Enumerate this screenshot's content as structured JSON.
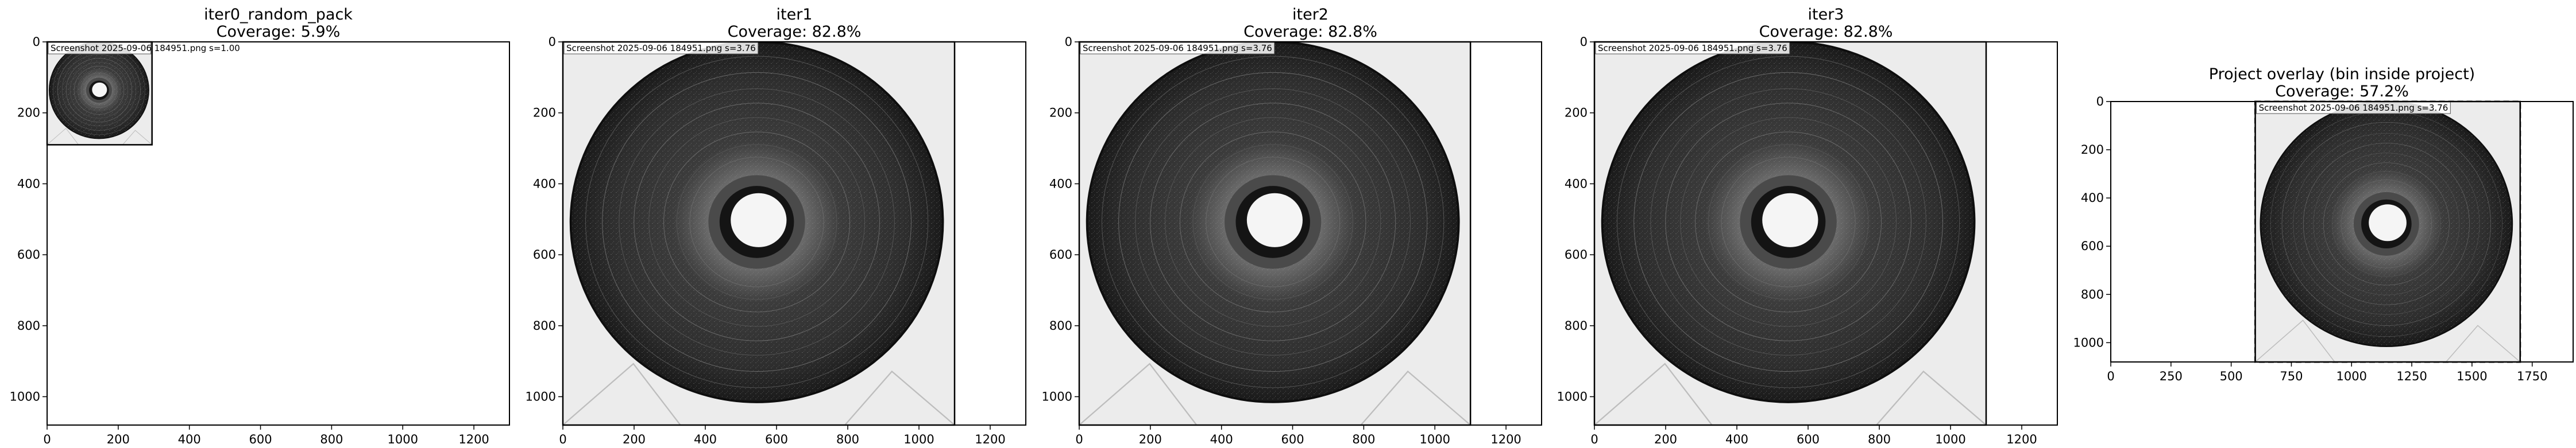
{
  "chart_data": [
    {
      "type": "image",
      "title": "iter0_random_pack",
      "subtitle": "Coverage: 5.9%",
      "xlim": [
        0,
        1300
      ],
      "ylim": [
        1080,
        0
      ],
      "xticks": [
        0,
        200,
        400,
        600,
        800,
        1000,
        1200
      ],
      "yticks": [
        0,
        200,
        400,
        600,
        800,
        1000
      ],
      "placements": [
        {
          "label": "Screenshot 2025-09-06 184951.png  s=1.00",
          "x": [
            0,
            295
          ],
          "y": [
            0,
            290
          ],
          "border": "solid"
        }
      ]
    },
    {
      "type": "image",
      "title": "iter1",
      "subtitle": "Coverage: 82.8%",
      "xlim": [
        0,
        1300
      ],
      "ylim": [
        1080,
        0
      ],
      "xticks": [
        0,
        200,
        400,
        600,
        800,
        1000,
        1200
      ],
      "yticks": [
        0,
        200,
        400,
        600,
        800,
        1000
      ],
      "placements": [
        {
          "label": "Screenshot 2025-09-06 184951.png  s=3.76",
          "x": [
            0,
            1100
          ],
          "y": [
            0,
            1080
          ],
          "border": "solid"
        }
      ]
    },
    {
      "type": "image",
      "title": "iter2",
      "subtitle": "Coverage: 82.8%",
      "xlim": [
        0,
        1300
      ],
      "ylim": [
        1080,
        0
      ],
      "xticks": [
        0,
        200,
        400,
        600,
        800,
        1000,
        1200
      ],
      "yticks": [
        0,
        200,
        400,
        600,
        800,
        1000
      ],
      "placements": [
        {
          "label": "Screenshot 2025-09-06 184951.png  s=3.76",
          "x": [
            0,
            1100
          ],
          "y": [
            0,
            1080
          ],
          "border": "solid"
        }
      ]
    },
    {
      "type": "image",
      "title": "iter3",
      "subtitle": "Coverage: 82.8%",
      "xlim": [
        0,
        1300
      ],
      "ylim": [
        1080,
        0
      ],
      "xticks": [
        0,
        200,
        400,
        600,
        800,
        1000,
        1200
      ],
      "yticks": [
        0,
        200,
        400,
        600,
        800,
        1000
      ],
      "placements": [
        {
          "label": "Screenshot 2025-09-06 184951.png  s=3.76",
          "x": [
            0,
            1100
          ],
          "y": [
            0,
            1080
          ],
          "border": "solid"
        }
      ]
    },
    {
      "type": "image",
      "title": "Project overlay (bin inside project)",
      "subtitle": "Coverage: 57.2%",
      "xlim": [
        0,
        1920
      ],
      "ylim": [
        1080,
        0
      ],
      "xticks": [
        0,
        250,
        500,
        750,
        1000,
        1250,
        1500,
        1750
      ],
      "yticks": [
        0,
        200,
        400,
        600,
        800,
        1000
      ],
      "bin": {
        "x": [
          600,
          1700
        ],
        "y": [
          0,
          1080
        ],
        "border": "dashed"
      },
      "placements": [
        {
          "label": "Screenshot 2025-09-06 184951.png  s=3.76",
          "x": [
            600,
            1700
          ],
          "y": [
            0,
            1080
          ],
          "border": "solid"
        }
      ]
    }
  ]
}
